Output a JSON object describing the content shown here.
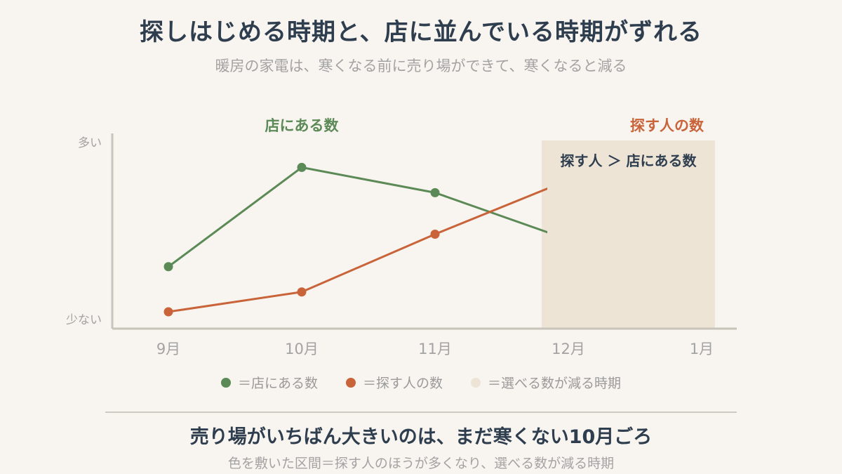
{
  "title": "探しはじめる時期と、店に並んでいる時期がずれる",
  "subtitle": "暖房の家電は、寒くなる前に売り場ができて、寒くなると減る",
  "conclusion": "売り場がいちばん大きいのは、まだ寒くない10月ごろ",
  "note": "色を敷いた区間＝探す人のほうが多くなり、選べる数が減る時期",
  "colors": {
    "store": "#5b8a57",
    "search": "#c9643a",
    "shade": "#ede4d6",
    "axis": "#c9c4ba",
    "text": "#2f3e4f",
    "muted": "#a3a3a3"
  },
  "legend": {
    "store": "＝店にある数",
    "search": "＝探す人の数",
    "shade": "＝選べる数が減る時期"
  },
  "chart_data": {
    "type": "line",
    "categories": [
      "9月",
      "10月",
      "11月",
      "12月",
      "1月"
    ],
    "y_axis_labels": {
      "top": "多い",
      "bottom": "少ない"
    },
    "ylim": [
      0,
      100
    ],
    "series": [
      {
        "name": "店にある数",
        "key": "store",
        "values": [
          32,
          87,
          73,
          47,
          null
        ]
      },
      {
        "name": "探す人の数",
        "key": "search",
        "values": [
          7,
          18,
          50,
          80,
          null
        ]
      }
    ],
    "shaded_region": {
      "from": 2.8,
      "to": 4.1,
      "label": "探す人 ＞ 店にある数"
    },
    "grid": false
  }
}
